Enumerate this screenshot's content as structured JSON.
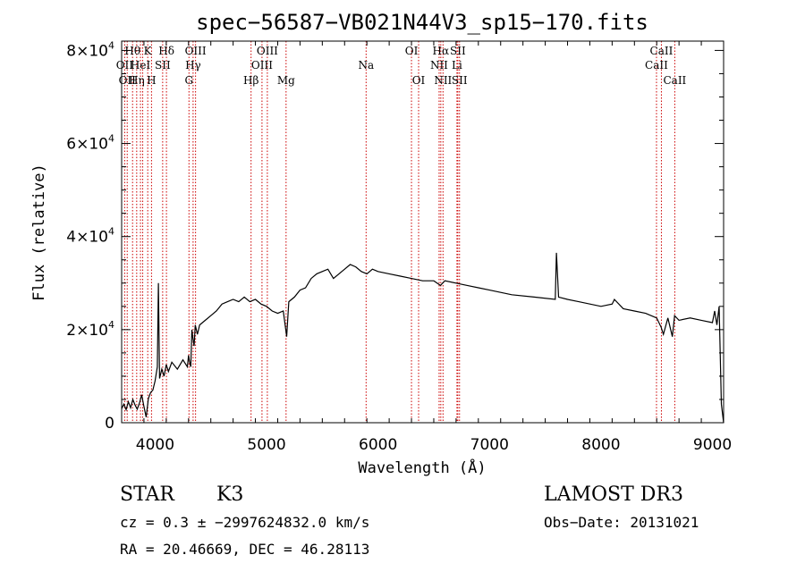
{
  "chart_data": {
    "type": "line",
    "title": "spec−56587−VB021N44V3_sp15−170.fits",
    "xlabel": "Wavelength (Å)",
    "ylabel": "Flux (relative)",
    "xlim": [
      3700,
      9100
    ],
    "ylim": [
      0,
      82000
    ],
    "x_ticks": [
      4000,
      5000,
      6000,
      7000,
      8000,
      9000
    ],
    "y_ticks": [
      {
        "value": 0,
        "label": "0"
      },
      {
        "value": 20000,
        "label": "2×10",
        "exp": "4"
      },
      {
        "value": 40000,
        "label": "4×10",
        "exp": "4"
      },
      {
        "value": 60000,
        "label": "6×10",
        "exp": "4"
      },
      {
        "value": 80000,
        "label": "8×10",
        "exp": "4"
      }
    ],
    "line_color": "#000000",
    "marker_color": "#cc0000",
    "series": [
      {
        "x": [
          3700,
          3720,
          3740,
          3760,
          3780,
          3800,
          3820,
          3840,
          3860,
          3880,
          3900,
          3920,
          3940,
          3960,
          3980,
          4000,
          4020,
          4030,
          4040,
          4060,
          4080,
          4100,
          4120,
          4150,
          4200,
          4250,
          4290,
          4300,
          4310,
          4320,
          4330,
          4340,
          4350,
          4360,
          4380,
          4400,
          4450,
          4500,
          4550,
          4600,
          4650,
          4700,
          4750,
          4800,
          4850,
          4900,
          4950,
          5000,
          5050,
          5100,
          5150,
          5180,
          5200,
          5250,
          5300,
          5350,
          5400,
          5450,
          5500,
          5550,
          5600,
          5650,
          5700,
          5750,
          5800,
          5850,
          5900,
          5950,
          6000,
          6100,
          6200,
          6300,
          6400,
          6500,
          6560,
          6600,
          6700,
          6800,
          6900,
          7000,
          7200,
          7400,
          7590,
          7600,
          7620,
          7700,
          7800,
          8000,
          8100,
          8120,
          8200,
          8300,
          8400,
          8500,
          8540,
          8560,
          8600,
          8640,
          8660,
          8700,
          8800,
          8900,
          9000,
          9020,
          9040,
          9060,
          9080,
          9100
        ],
        "y": [
          3000,
          4000,
          2800,
          4500,
          3200,
          5000,
          3800,
          2900,
          4200,
          6000,
          3500,
          1200,
          5200,
          6500,
          7000,
          9000,
          12000,
          30000,
          9500,
          11500,
          10000,
          12500,
          11000,
          13000,
          11500,
          13500,
          12000,
          14500,
          13000,
          12000,
          20000,
          18000,
          16500,
          21000,
          19000,
          21000,
          22000,
          23000,
          24000,
          25500,
          26000,
          26500,
          26000,
          27000,
          26000,
          26500,
          25500,
          25000,
          24000,
          23500,
          24000,
          18500,
          26000,
          27000,
          28500,
          29000,
          31000,
          32000,
          32500,
          33000,
          31000,
          32000,
          33000,
          34000,
          33500,
          32500,
          32000,
          33000,
          32500,
          32000,
          31500,
          31000,
          30500,
          30500,
          29500,
          30500,
          30000,
          29500,
          29000,
          28500,
          27500,
          27000,
          26500,
          36500,
          27000,
          26500,
          26000,
          25000,
          25500,
          26500,
          24500,
          24000,
          23500,
          22500,
          20500,
          19000,
          22500,
          18500,
          23000,
          22000,
          22500,
          22000,
          21500,
          24000,
          21000,
          25000,
          4000,
          0
        ]
      }
    ],
    "lines": [
      {
        "wl": 3727,
        "label": "OII",
        "row": 2
      },
      {
        "wl": 3750,
        "label": "OII",
        "row": 3
      },
      {
        "wl": 3798,
        "label": "Hθ",
        "row": 1
      },
      {
        "wl": 3835,
        "label": "Hη",
        "row": 3
      },
      {
        "wl": 3869,
        "label": "HeI",
        "row": 2
      },
      {
        "wl": 3889,
        "label": "",
        "row": 0
      },
      {
        "wl": 3934,
        "label": "K",
        "row": 1
      },
      {
        "wl": 3968,
        "label": "H",
        "row": 3
      },
      {
        "wl": 4068,
        "label": "SII",
        "row": 2
      },
      {
        "wl": 4102,
        "label": "Hδ",
        "row": 1
      },
      {
        "wl": 4304,
        "label": "G",
        "row": 3
      },
      {
        "wl": 4341,
        "label": "Hγ",
        "row": 2
      },
      {
        "wl": 4363,
        "label": "OIII",
        "row": 1
      },
      {
        "wl": 4861,
        "label": "Hβ",
        "row": 3
      },
      {
        "wl": 4959,
        "label": "OIII",
        "row": 2
      },
      {
        "wl": 5007,
        "label": "OIII",
        "row": 1
      },
      {
        "wl": 5175,
        "label": "Mg",
        "row": 3
      },
      {
        "wl": 5893,
        "label": "Na",
        "row": 2
      },
      {
        "wl": 6300,
        "label": "OI",
        "row": 1
      },
      {
        "wl": 6364,
        "label": "OI",
        "row": 3
      },
      {
        "wl": 6548,
        "label": "NII",
        "row": 2
      },
      {
        "wl": 6563,
        "label": "Hα",
        "row": 1
      },
      {
        "wl": 6583,
        "label": "NII",
        "row": 3
      },
      {
        "wl": 6708,
        "label": "Li",
        "row": 2
      },
      {
        "wl": 6716,
        "label": "SII",
        "row": 1
      },
      {
        "wl": 6731,
        "label": "SII",
        "row": 3
      },
      {
        "wl": 8498,
        "label": "CaII",
        "row": 2
      },
      {
        "wl": 8542,
        "label": "CaII",
        "row": 1
      },
      {
        "wl": 8662,
        "label": "CaII",
        "row": 3
      }
    ]
  },
  "info": {
    "class": "STAR",
    "subclass": "K3",
    "survey": "LAMOST DR3",
    "redshift": "cz = 0.3 ± −2997624832.0 km/s",
    "obsdate": "Obs−Date: 20131021",
    "coords": "RA =  20.46669, DEC =  46.28113"
  }
}
